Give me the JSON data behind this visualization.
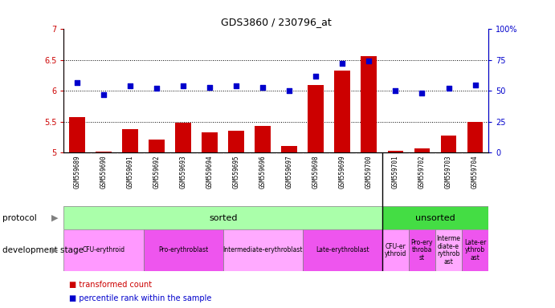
{
  "title": "GDS3860 / 230796_at",
  "samples": [
    "GSM559689",
    "GSM559690",
    "GSM559691",
    "GSM559692",
    "GSM559693",
    "GSM559694",
    "GSM559695",
    "GSM559696",
    "GSM559697",
    "GSM559698",
    "GSM559699",
    "GSM559700",
    "GSM559701",
    "GSM559702",
    "GSM559703",
    "GSM559704"
  ],
  "bar_values": [
    5.58,
    5.02,
    5.38,
    5.21,
    5.48,
    5.33,
    5.35,
    5.43,
    5.11,
    6.1,
    6.33,
    6.57,
    5.03,
    5.07,
    5.28,
    5.5
  ],
  "dot_values": [
    57,
    47,
    54,
    52,
    54,
    53,
    54,
    53,
    50,
    62,
    72,
    74,
    50,
    48,
    52,
    55
  ],
  "bar_color": "#cc0000",
  "dot_color": "#0000cc",
  "ylim_left": [
    5.0,
    7.0
  ],
  "ylim_right": [
    0,
    100
  ],
  "yticks_left": [
    5.0,
    5.5,
    6.0,
    6.5,
    7.0
  ],
  "yticks_right": [
    0,
    25,
    50,
    75,
    100
  ],
  "hlines": [
    5.5,
    6.0,
    6.5
  ],
  "protocol": {
    "sorted": {
      "start": 0,
      "end": 12,
      "label": "sorted",
      "color": "#aaffaa"
    },
    "unsorted": {
      "start": 12,
      "end": 16,
      "label": "unsorted",
      "color": "#44dd44"
    }
  },
  "dev_stage": [
    {
      "label": "CFU-erythroid",
      "start": 0,
      "end": 3,
      "color": "#ff99ff"
    },
    {
      "label": "Pro-erythroblast",
      "start": 3,
      "end": 6,
      "color": "#ee55ee"
    },
    {
      "label": "Intermediate-erythroblast",
      "start": 6,
      "end": 9,
      "color": "#ffaaff"
    },
    {
      "label": "Late-erythroblast",
      "start": 9,
      "end": 12,
      "color": "#ee55ee"
    },
    {
      "label": "CFU-er\nythroid",
      "start": 12,
      "end": 13,
      "color": "#ff99ff"
    },
    {
      "label": "Pro-ery\nthroba\nst",
      "start": 13,
      "end": 14,
      "color": "#ee55ee"
    },
    {
      "label": "Interme\ndiate-e\nrythrob\nast",
      "start": 14,
      "end": 15,
      "color": "#ffaaff"
    },
    {
      "label": "Late-er\nythrob\nast",
      "start": 15,
      "end": 16,
      "color": "#ee55ee"
    }
  ],
  "legend_items": [
    {
      "label": "transformed count",
      "color": "#cc0000"
    },
    {
      "label": "percentile rank within the sample",
      "color": "#0000cc"
    }
  ],
  "bg_color": "#ffffff",
  "plot_bg_color": "#ffffff",
  "axis_color_left": "#cc0000",
  "axis_color_right": "#0000cc",
  "xticklabel_bg": "#cccccc",
  "n_samples": 16,
  "sorted_boundary": 12
}
